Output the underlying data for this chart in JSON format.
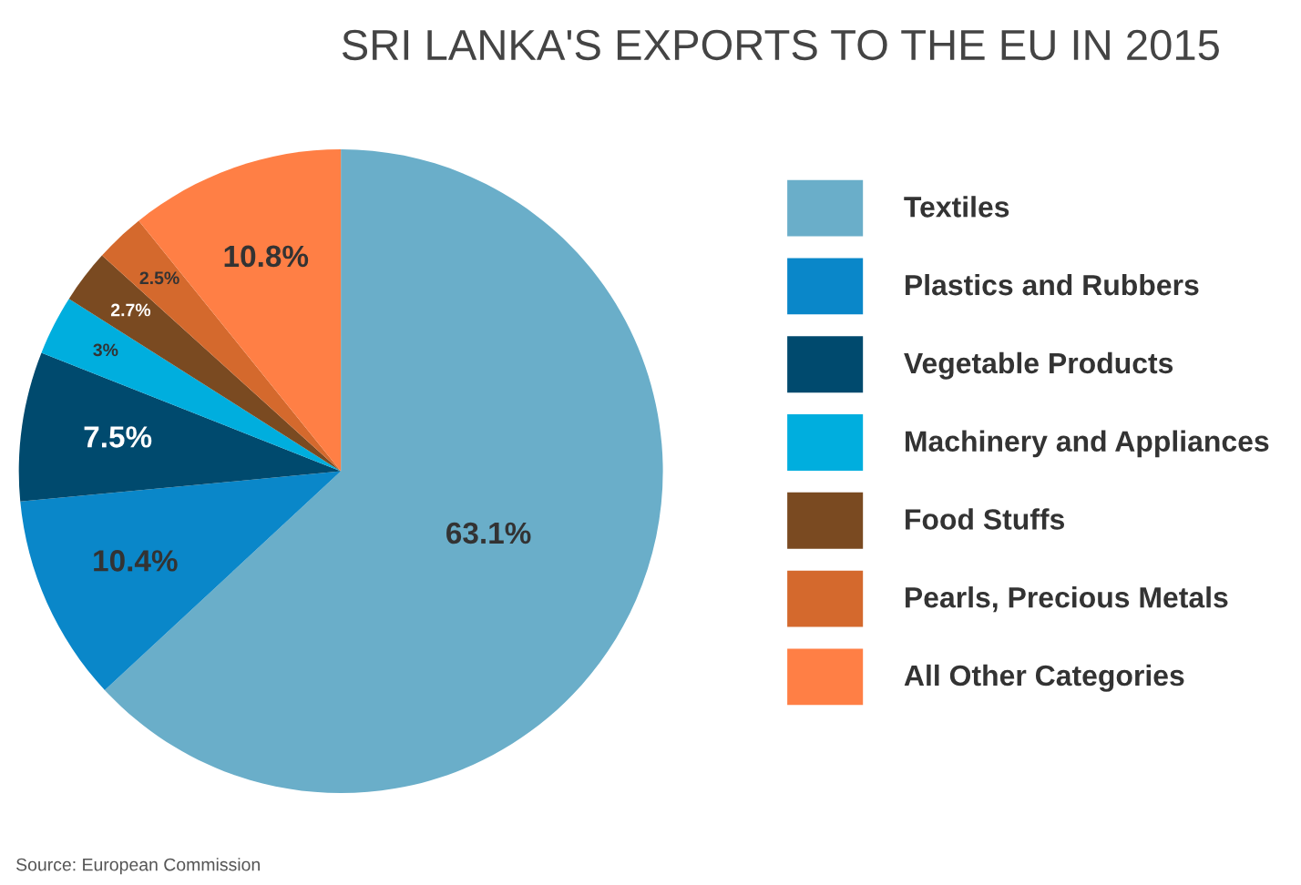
{
  "chart_data": {
    "type": "pie",
    "title": "SRI LANKA'S EXPORTS TO THE EU IN 2015",
    "categories": [
      "Textiles",
      "Plastics and Rubbers",
      "Vegetable Products",
      "Machinery and Appliances",
      "Food Stuffs",
      "Pearls, Precious Metals",
      "All Other Categories"
    ],
    "values": [
      63.1,
      10.4,
      7.5,
      3,
      2.7,
      2.5,
      10.8
    ],
    "value_labels": [
      "63.1%",
      "10.4%",
      "7.5%",
      "3%",
      "2.7%",
      "2.5%",
      "10.8%"
    ],
    "colors": [
      "#6aaec9",
      "#0a87c9",
      "#004a6e",
      "#00aede",
      "#7a4a21",
      "#d4692d",
      "#ff7f45"
    ],
    "legend": "right",
    "annotations": [
      "Source: European Commission"
    ]
  }
}
